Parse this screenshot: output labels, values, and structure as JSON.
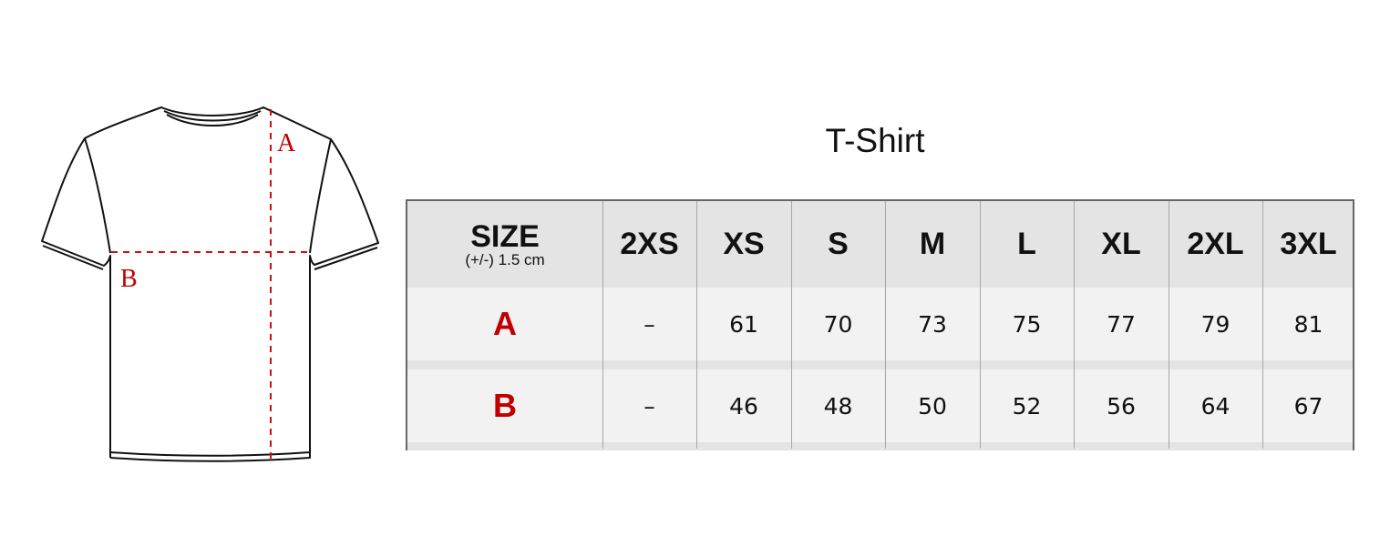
{
  "title": "T-Shirt",
  "diagram": {
    "label_a": "A",
    "label_b": "B"
  },
  "colors": {
    "accent": "#c00000",
    "header_bg": "#e4e4e4",
    "row_bg": "#f2f2f2"
  },
  "table": {
    "size_header": "SIZE",
    "tolerance": "(+/-) 1.5 cm",
    "sizes": [
      "2XS",
      "XS",
      "S",
      "M",
      "L",
      "XL",
      "2XL",
      "3XL"
    ],
    "rows": [
      {
        "label": "A",
        "values": [
          "–",
          "61",
          "70",
          "73",
          "75",
          "77",
          "79",
          "81"
        ]
      },
      {
        "label": "B",
        "values": [
          "–",
          "46",
          "48",
          "50",
          "52",
          "56",
          "64",
          "67"
        ]
      }
    ]
  }
}
